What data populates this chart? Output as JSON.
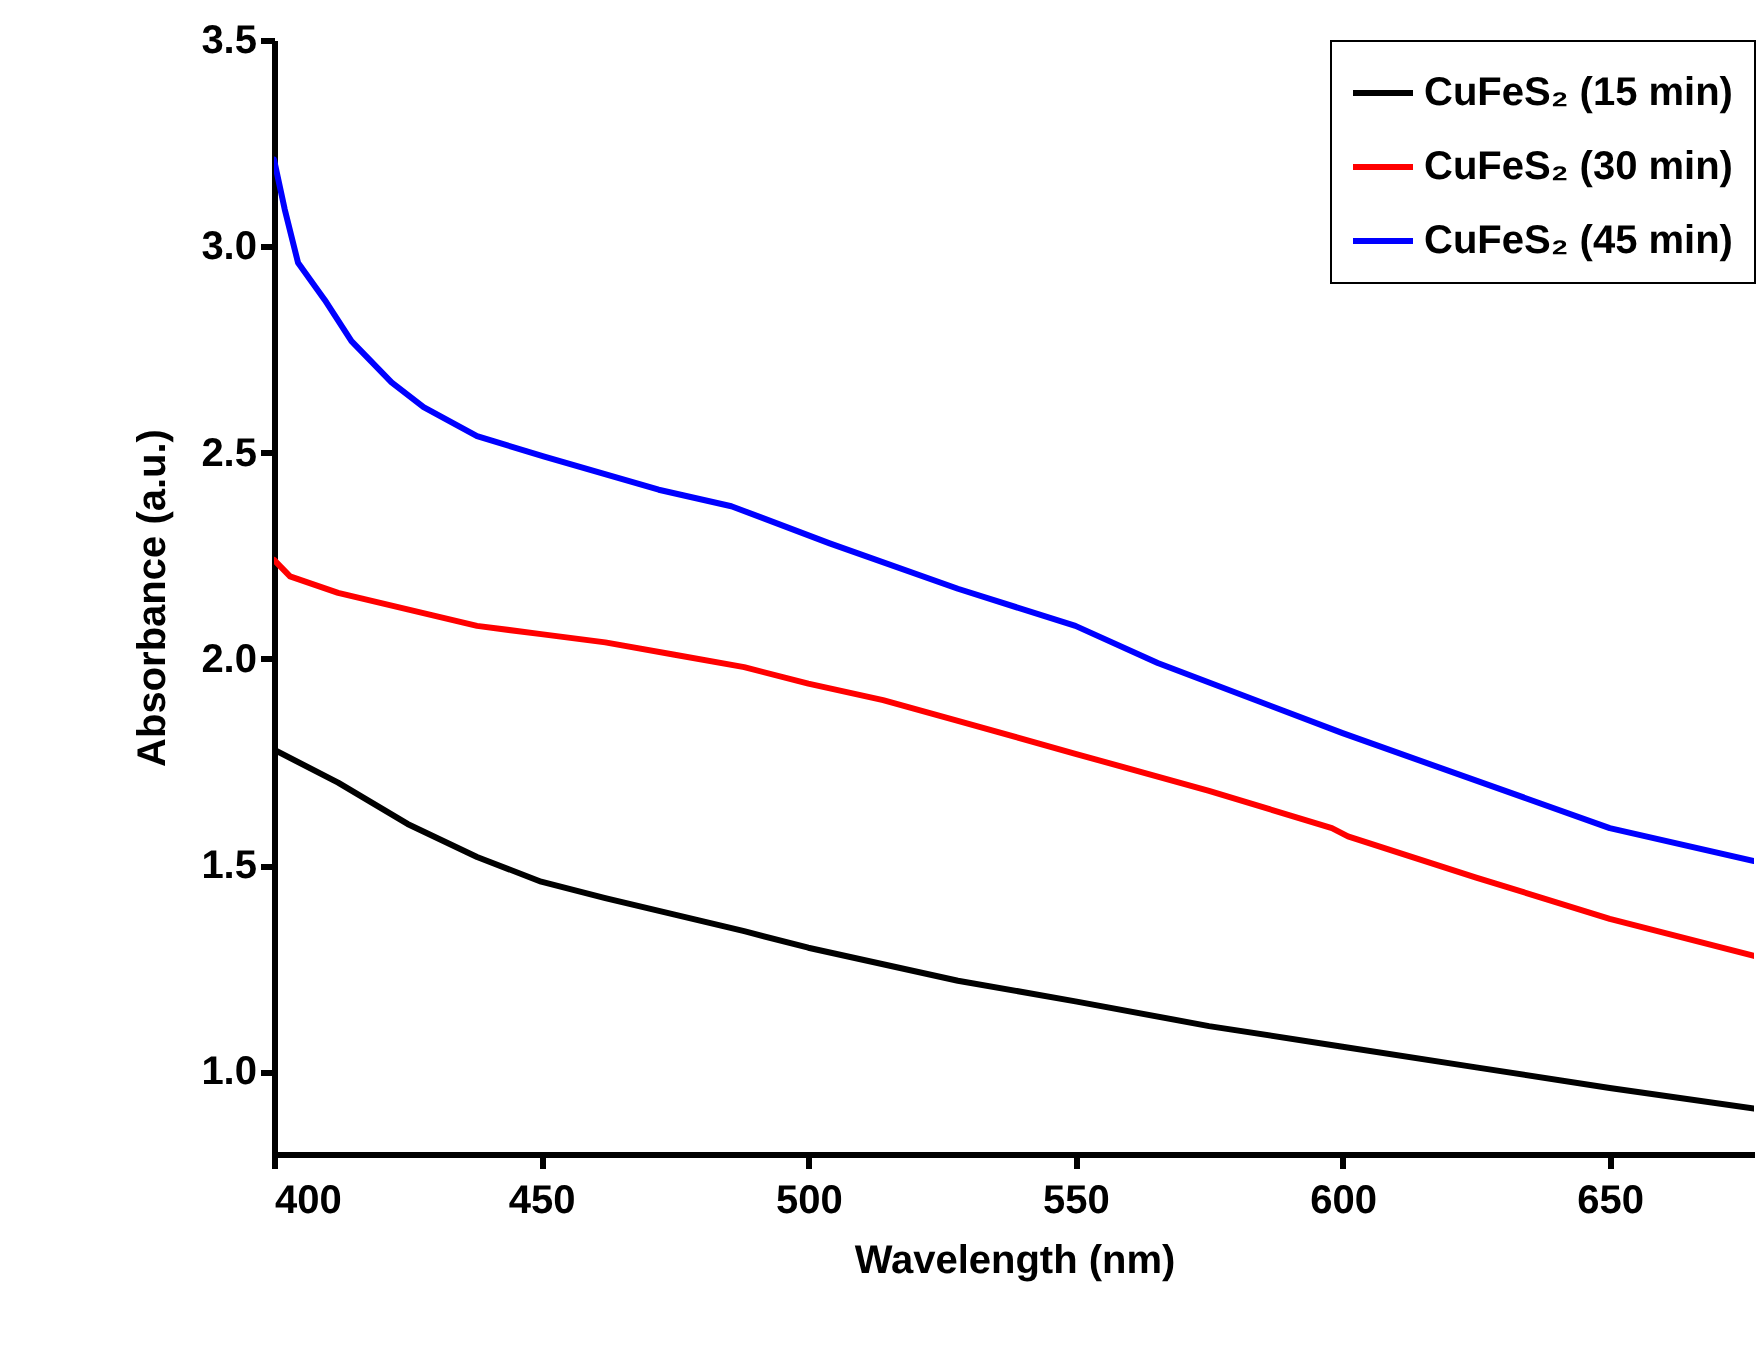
{
  "chart_data": {
    "type": "line",
    "xlabel": "Wavelength (nm)",
    "ylabel": "Absorbance (a.u.)",
    "xlim": [
      400,
      677
    ],
    "ylim": [
      0.8,
      3.5
    ],
    "xticks": [
      400,
      450,
      500,
      550,
      600,
      650
    ],
    "yticks": [
      {
        "value": 1,
        "label": "1.0"
      },
      {
        "value": 1.5,
        "label": "1.5"
      },
      {
        "value": 2,
        "label": "2.0"
      },
      {
        "value": 2.5,
        "label": "2.5"
      },
      {
        "value": 3,
        "label": "3.0"
      },
      {
        "value": 3.5,
        "label": "3.5"
      }
    ],
    "legend": "top right",
    "grid": false,
    "series": [
      {
        "name": "CuFeS₂ (15 min)",
        "color": "#000000",
        "x": [
          400,
          412,
          425,
          438,
          450,
          462,
          475,
          488,
          500,
          514,
          528,
          550,
          575,
          600,
          625,
          650,
          677
        ],
        "values": [
          1.78,
          1.7,
          1.6,
          1.52,
          1.46,
          1.42,
          1.38,
          1.34,
          1.3,
          1.26,
          1.22,
          1.17,
          1.11,
          1.06,
          1.01,
          0.96,
          0.91
        ]
      },
      {
        "name": "CuFeS₂ (30 min)",
        "color": "#ff0000",
        "x": [
          400,
          403,
          412,
          425,
          438,
          450,
          462,
          475,
          488,
          500,
          514,
          528,
          550,
          575,
          598,
          601,
          625,
          650,
          677
        ],
        "values": [
          2.24,
          2.2,
          2.16,
          2.12,
          2.08,
          2.06,
          2.04,
          2.01,
          1.98,
          1.94,
          1.9,
          1.85,
          1.77,
          1.68,
          1.59,
          1.57,
          1.47,
          1.37,
          1.28
        ]
      },
      {
        "name": "CuFeS₂ (45 min)",
        "color": "#0000ff",
        "x": [
          400,
          402,
          404.5,
          409.5,
          414.5,
          422,
          428,
          438,
          450.6,
          472,
          485.6,
          504,
          528,
          550,
          565.4,
          600,
          650,
          677
        ],
        "values": [
          3.21,
          3.09,
          2.96,
          2.87,
          2.77,
          2.67,
          2.61,
          2.54,
          2.49,
          2.41,
          2.37,
          2.28,
          2.17,
          2.08,
          1.99,
          1.82,
          1.59,
          1.51
        ]
      }
    ]
  }
}
